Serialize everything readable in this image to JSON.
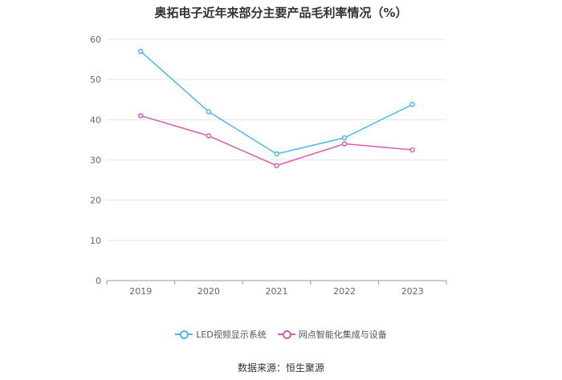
{
  "title": "奥拓电子近年来部分主要产品毛利率情况（%）",
  "source": "数据来源：恒生聚源",
  "chart_data": {
    "type": "line",
    "title": "奥拓电子近年来部分主要产品毛利率情况（%）",
    "x": [
      "2019",
      "2020",
      "2021",
      "2022",
      "2023"
    ],
    "ylim": [
      0,
      60
    ],
    "yticks": [
      0,
      10,
      20,
      30,
      40,
      50,
      60
    ],
    "grid": true,
    "legend_position": "bottom",
    "series": [
      {
        "name": "LED视频显示系统",
        "color": "#4db8ea",
        "values": [
          57.0,
          42.0,
          31.5,
          35.5,
          43.8
        ]
      },
      {
        "name": "网点智能化集成与设备",
        "color": "#d55eae",
        "values": [
          41.0,
          36.0,
          28.6,
          34.0,
          32.5
        ]
      }
    ]
  }
}
